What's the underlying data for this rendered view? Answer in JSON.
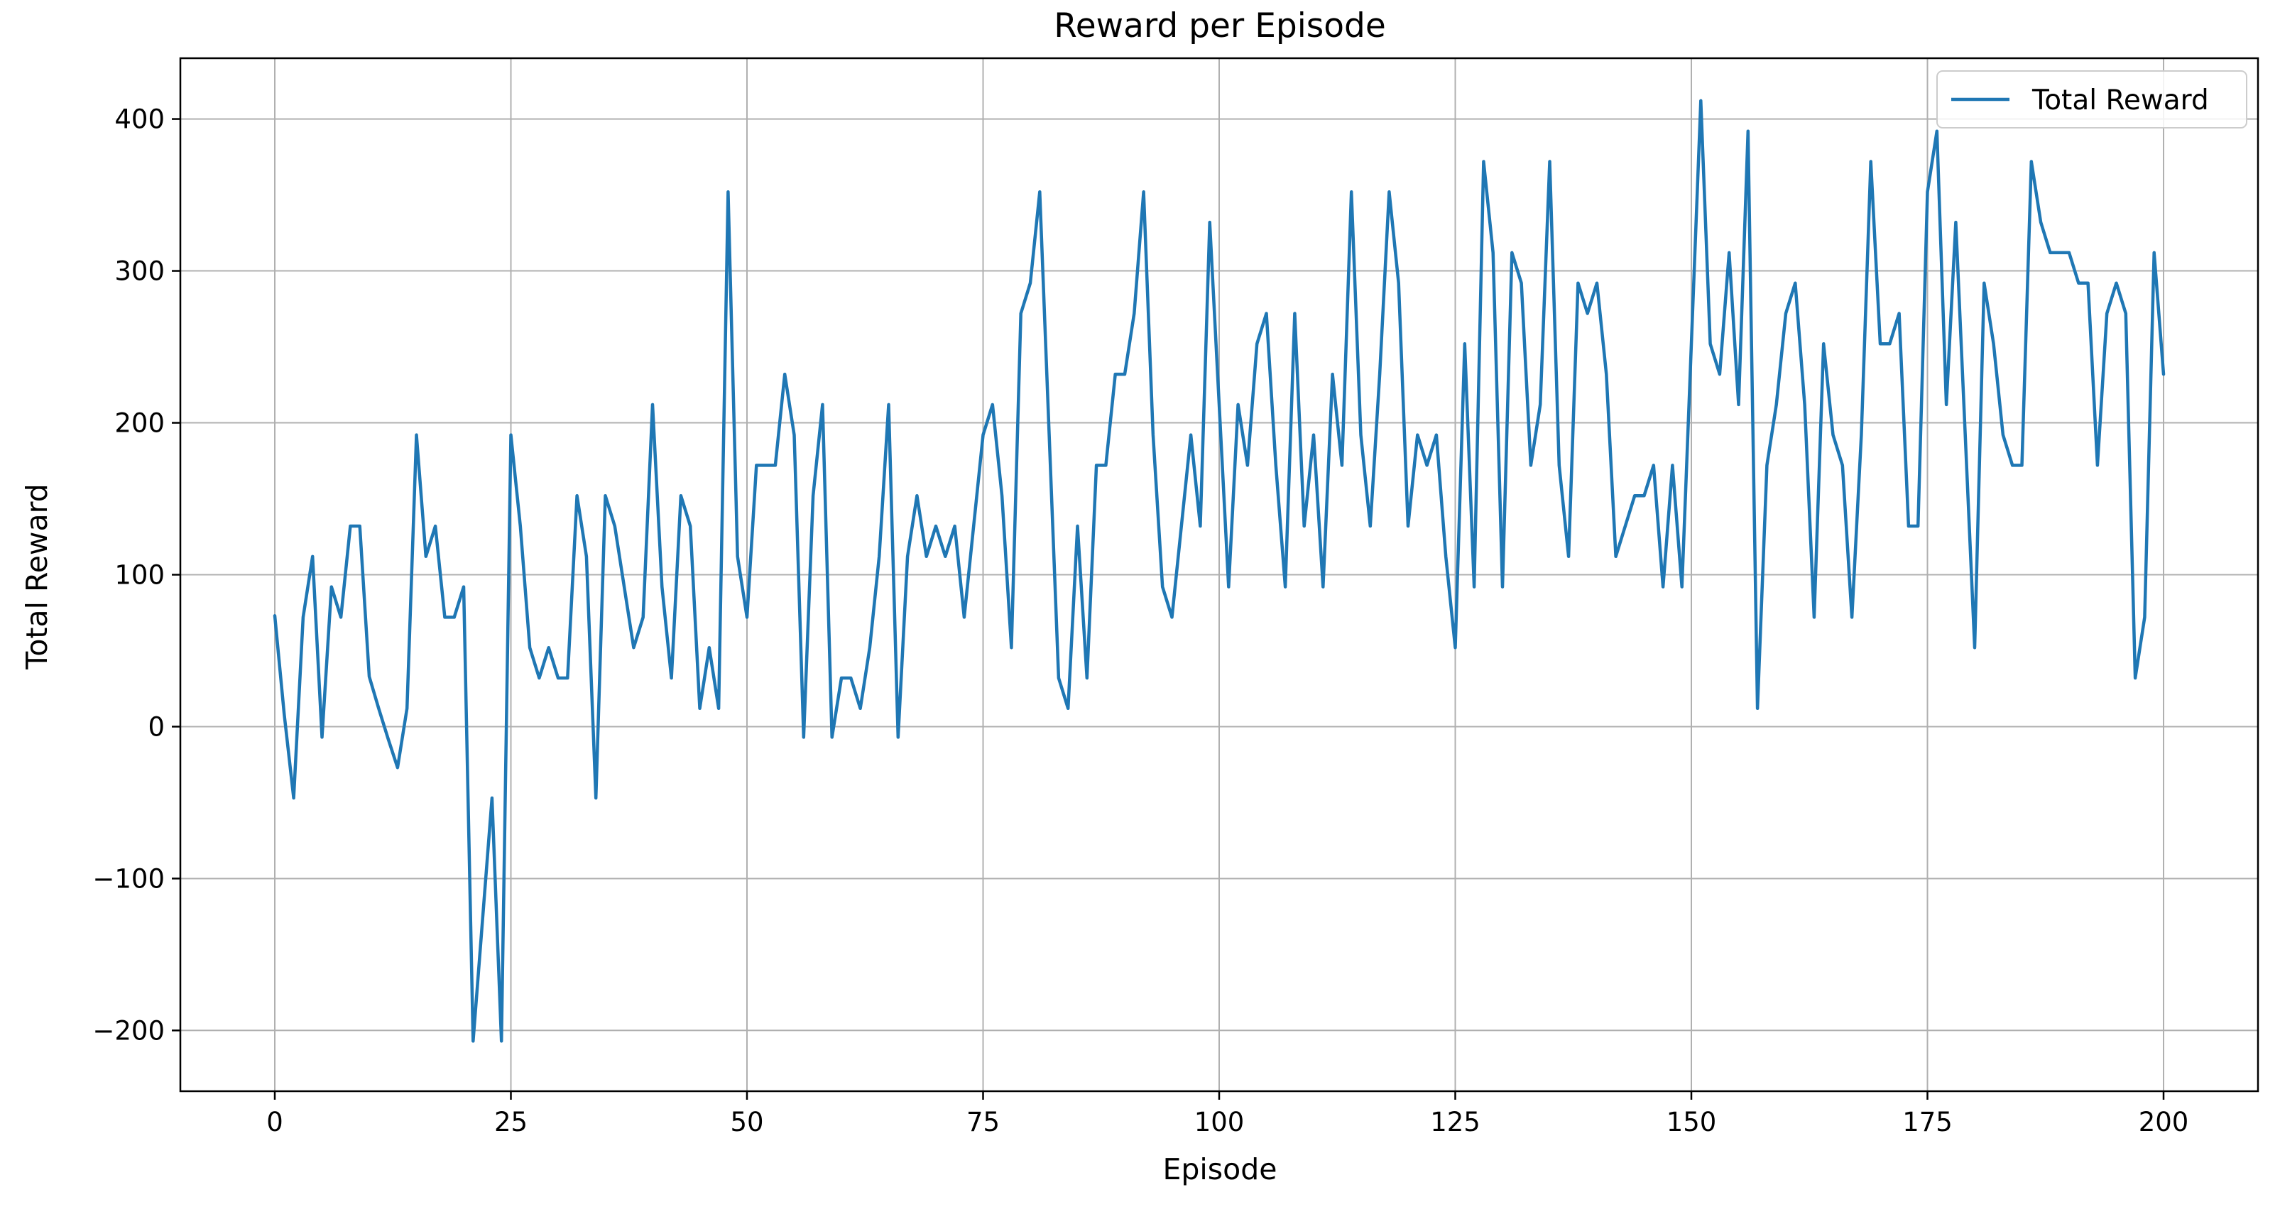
{
  "chart_data": {
    "type": "line",
    "title": "Reward per Episode",
    "xlabel": "Episode",
    "ylabel": "Total Reward",
    "xlim": [
      -10,
      210
    ],
    "ylim": [
      -240,
      440
    ],
    "xticks": [
      0,
      25,
      50,
      75,
      100,
      125,
      150,
      175,
      200
    ],
    "xtick_labels": [
      "0",
      "25",
      "50",
      "75",
      "100",
      "125",
      "150",
      "175",
      "200"
    ],
    "yticks": [
      -200,
      -100,
      0,
      100,
      200,
      300,
      400
    ],
    "ytick_labels": [
      "−200",
      "−100",
      "0",
      "100",
      "200",
      "300",
      "400"
    ],
    "grid": true,
    "legend_position": "top-right",
    "colors": {
      "series": "#1f77b4",
      "grid": "#b0b0b0",
      "axis": "#000000"
    },
    "series": [
      {
        "name": "Total Reward",
        "x": [
          0,
          1,
          2,
          3,
          4,
          5,
          6,
          7,
          8,
          9,
          10,
          11,
          12,
          13,
          14,
          15,
          16,
          17,
          18,
          19,
          20,
          21,
          22,
          23,
          24,
          25,
          26,
          27,
          28,
          29,
          30,
          31,
          32,
          33,
          34,
          35,
          36,
          37,
          38,
          39,
          40,
          41,
          42,
          43,
          44,
          45,
          46,
          47,
          48,
          49,
          50,
          51,
          52,
          53,
          54,
          55,
          56,
          57,
          58,
          59,
          60,
          61,
          62,
          63,
          64,
          65,
          66,
          67,
          68,
          69,
          70,
          71,
          72,
          73,
          74,
          75,
          76,
          77,
          78,
          79,
          80,
          81,
          82,
          83,
          84,
          85,
          86,
          87,
          88,
          89,
          90,
          91,
          92,
          93,
          94,
          95,
          96,
          97,
          98,
          99,
          100,
          101,
          102,
          103,
          104,
          105,
          106,
          107,
          108,
          109,
          110,
          111,
          112,
          113,
          114,
          115,
          116,
          117,
          118,
          119,
          120,
          121,
          122,
          123,
          124,
          125,
          126,
          127,
          128,
          129,
          130,
          131,
          132,
          133,
          134,
          135,
          136,
          137,
          138,
          139,
          140,
          141,
          142,
          143,
          144,
          145,
          146,
          147,
          148,
          149,
          150,
          151,
          152,
          153,
          154,
          155,
          156,
          157,
          158,
          159,
          160,
          161,
          162,
          163,
          164,
          165,
          166,
          167,
          168,
          169,
          170,
          171,
          172,
          173,
          174,
          175,
          176,
          177,
          178,
          179,
          180,
          181,
          182,
          183,
          184,
          185,
          186,
          187,
          188,
          189,
          190,
          191,
          192,
          193,
          194,
          195,
          196,
          197,
          198,
          199,
          200
        ],
        "values": [
          73,
          8,
          -47,
          72,
          112,
          -7,
          92,
          72,
          132,
          132,
          33,
          12,
          -8,
          -27,
          12,
          192,
          112,
          132,
          72,
          72,
          92,
          -207,
          -127,
          -47,
          -207,
          192,
          132,
          52,
          32,
          52,
          32,
          32,
          152,
          112,
          -47,
          152,
          132,
          92,
          52,
          72,
          212,
          92,
          32,
          152,
          132,
          12,
          52,
          12,
          352,
          112,
          72,
          172,
          172,
          172,
          232,
          192,
          -7,
          152,
          212,
          -7,
          32,
          32,
          12,
          52,
          112,
          212,
          -7,
          112,
          152,
          112,
          132,
          112,
          132,
          72,
          132,
          192,
          212,
          152,
          52,
          272,
          292,
          352,
          192,
          32,
          12,
          132,
          32,
          172,
          172,
          232,
          232,
          272,
          352,
          192,
          92,
          72,
          132,
          192,
          132,
          332,
          212,
          92,
          212,
          172,
          252,
          272,
          172,
          92,
          272,
          132,
          192,
          92,
          232,
          172,
          352,
          192,
          132,
          232,
          352,
          292,
          132,
          192,
          172,
          192,
          112,
          52,
          252,
          92,
          372,
          312,
          92,
          312,
          292,
          172,
          212,
          372,
          172,
          112,
          292,
          272,
          292,
          232,
          112,
          132,
          152,
          152,
          172,
          92,
          172,
          92,
          252,
          412,
          252,
          232,
          312,
          212,
          392,
          12,
          172,
          212,
          272,
          292,
          212,
          72,
          252,
          192,
          172,
          72,
          192,
          372,
          252,
          252,
          272,
          132,
          132,
          352,
          392,
          212,
          332,
          192,
          52,
          292,
          252,
          192,
          172,
          172,
          372,
          332,
          312,
          312,
          312,
          292,
          292,
          172,
          272,
          292,
          272,
          32,
          72,
          312,
          232
        ]
      }
    ]
  }
}
